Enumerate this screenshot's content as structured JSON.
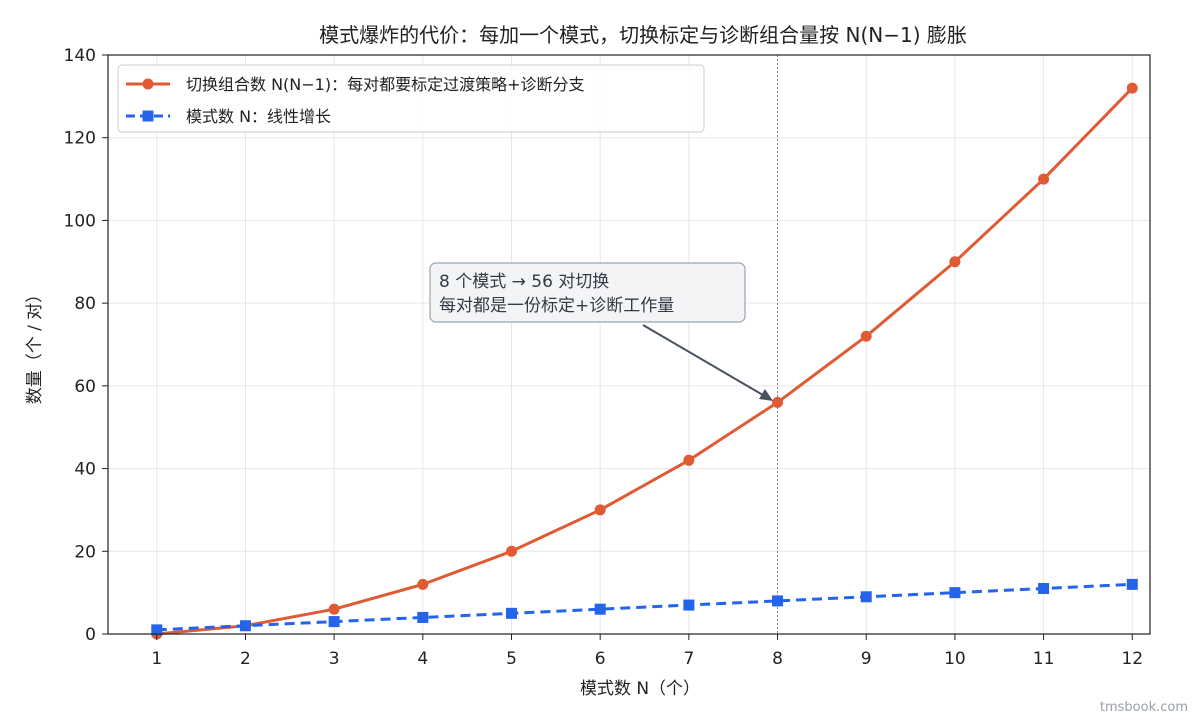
{
  "chart_data": {
    "type": "line",
    "title": "模式爆炸的代价：每加一个模式，切换标定与诊断组合量按 N(N−1) 膨胀",
    "xlabel": "模式数 N（个）",
    "ylabel": "数量（个 / 对）",
    "x": [
      1,
      2,
      3,
      4,
      5,
      6,
      7,
      8,
      9,
      10,
      11,
      12
    ],
    "xlim": [
      0.45,
      12.2
    ],
    "ylim": [
      0,
      140
    ],
    "yticks": [
      0,
      20,
      40,
      60,
      80,
      100,
      120,
      140
    ],
    "grid": true,
    "legend_position": "top-left",
    "series": [
      {
        "name": "切换组合数 N(N−1)：每对都要标定过渡策略+诊断分支",
        "values": [
          0,
          2,
          6,
          12,
          20,
          30,
          42,
          56,
          72,
          90,
          110,
          132
        ],
        "color": "#e05a33",
        "marker": "circle",
        "line_style": "solid"
      },
      {
        "name": "模式数 N：线性增长",
        "values": [
          1,
          2,
          3,
          4,
          5,
          6,
          7,
          8,
          9,
          10,
          11,
          12
        ],
        "color": "#2563eb",
        "marker": "square",
        "line_style": "dashed"
      }
    ],
    "vline_x": 8,
    "annotation": {
      "lines": [
        "8 个模式 → 56 对切换",
        "每对都是一份标定+诊断工作量"
      ],
      "target_x": 8,
      "target_y": 56
    }
  },
  "watermark": "tmsbook.com"
}
